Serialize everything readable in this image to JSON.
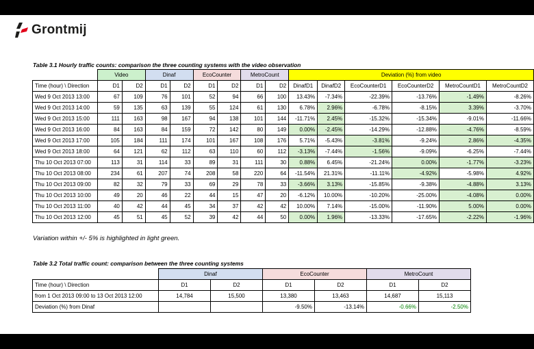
{
  "brand": {
    "name": "Grontmij"
  },
  "table1": {
    "caption": "Table 3.1 Hourly traffic counts: comparison the three counting systems with the video observation",
    "groups": [
      "Video",
      "Dinaf",
      "EcoCounter",
      "MetroCount",
      "Deviation (%) from video"
    ],
    "columns": [
      "Time (hour) \\ Direction",
      "D1",
      "D2",
      "D1",
      "D2",
      "D1",
      "D2",
      "D1",
      "D2",
      "DinafD1",
      "DinafD2",
      "EcoCounterD1",
      "EcoCounterD2",
      "MetroCountD1",
      "MetroCountD2"
    ],
    "rows": [
      [
        "Wed 9 Oct 2013 13:00",
        "67",
        "109",
        "76",
        "101",
        "52",
        "94",
        "66",
        "100",
        "13.43%",
        "-7.34%",
        "-22.39%",
        "-13.76%",
        "-1.49%",
        "-8.26%"
      ],
      [
        "Wed 9 Oct 2013 14:00",
        "59",
        "135",
        "63",
        "139",
        "55",
        "124",
        "61",
        "130",
        "6.78%",
        "2.96%",
        "-6.78%",
        "-8.15%",
        "3.39%",
        "-3.70%"
      ],
      [
        "Wed 9 Oct 2013 15:00",
        "111",
        "163",
        "98",
        "167",
        "94",
        "138",
        "101",
        "144",
        "-11.71%",
        "2.45%",
        "-15.32%",
        "-15.34%",
        "-9.01%",
        "-11.66%"
      ],
      [
        "Wed 9 Oct 2013 16:00",
        "84",
        "163",
        "84",
        "159",
        "72",
        "142",
        "80",
        "149",
        "0.00%",
        "-2.45%",
        "-14.29%",
        "-12.88%",
        "-4.76%",
        "-8.59%"
      ],
      [
        "Wed 9 Oct 2013 17:00",
        "105",
        "184",
        "111",
        "174",
        "101",
        "167",
        "108",
        "176",
        "5.71%",
        "-5.43%",
        "-3.81%",
        "-9.24%",
        "2.86%",
        "-4.35%"
      ],
      [
        "Wed 9 Oct 2013 18:00",
        "64",
        "121",
        "62",
        "112",
        "63",
        "110",
        "60",
        "112",
        "-3.13%",
        "-7.44%",
        "-1.56%",
        "-9.09%",
        "-6.25%",
        "-7.44%"
      ],
      [
        "Thu 10 Oct 2013 07:00",
        "113",
        "31",
        "114",
        "33",
        "89",
        "31",
        "111",
        "30",
        "0.88%",
        "6.45%",
        "-21.24%",
        "0.00%",
        "-1.77%",
        "-3.23%"
      ],
      [
        "Thu 10 Oct 2013 08:00",
        "234",
        "61",
        "207",
        "74",
        "208",
        "58",
        "220",
        "64",
        "-11.54%",
        "21.31%",
        "-11.11%",
        "-4.92%",
        "-5.98%",
        "4.92%"
      ],
      [
        "Thu 10 Oct 2013 09:00",
        "82",
        "32",
        "79",
        "33",
        "69",
        "29",
        "78",
        "33",
        "-3.66%",
        "3.13%",
        "-15.85%",
        "-9.38%",
        "-4.88%",
        "3.13%"
      ],
      [
        "Thu 10 Oct 2013 10:00",
        "49",
        "20",
        "46",
        "22",
        "44",
        "15",
        "47",
        "20",
        "-6.12%",
        "10.00%",
        "-10.20%",
        "-25.00%",
        "-4.08%",
        "0.00%"
      ],
      [
        "Thu 10 Oct 2013 11:00",
        "40",
        "42",
        "44",
        "45",
        "34",
        "37",
        "42",
        "42",
        "10.00%",
        "7.14%",
        "-15.00%",
        "-11.90%",
        "5.00%",
        "0.00%"
      ],
      [
        "Thu 10 Oct 2013 12:00",
        "45",
        "51",
        "45",
        "52",
        "39",
        "42",
        "44",
        "50",
        "0.00%",
        "1.96%",
        "-13.33%",
        "-17.65%",
        "-2.22%",
        "-1.96%"
      ]
    ],
    "highlight": [
      [
        false,
        false,
        false,
        false,
        true,
        false
      ],
      [
        false,
        true,
        false,
        false,
        true,
        false
      ],
      [
        false,
        true,
        false,
        false,
        false,
        false
      ],
      [
        true,
        true,
        false,
        false,
        true,
        false
      ],
      [
        false,
        false,
        true,
        false,
        true,
        true
      ],
      [
        true,
        false,
        true,
        false,
        false,
        false
      ],
      [
        true,
        false,
        false,
        true,
        true,
        true
      ],
      [
        false,
        false,
        false,
        true,
        false,
        true
      ],
      [
        true,
        true,
        false,
        false,
        true,
        true
      ],
      [
        false,
        false,
        false,
        false,
        true,
        true
      ],
      [
        false,
        false,
        false,
        false,
        true,
        true
      ],
      [
        true,
        true,
        false,
        false,
        true,
        true
      ]
    ],
    "note": "Variation within +/- 5% is highlighted in light green."
  },
  "table2": {
    "caption": "Table 3.2 Total traffic count: comparison between the three counting systems",
    "groups": [
      "Dinaf",
      "EcoCounter",
      "MetroCount"
    ],
    "header": [
      "Time (hour) \\ Direction",
      "D1",
      "D2",
      "D1",
      "D2",
      "D1",
      "D2"
    ],
    "total_row": [
      "from 1 Oct 2013 09:00 to 13 Oct 2013 12:00",
      "14,784",
      "15,500",
      "13,380",
      "13,463",
      "14,687",
      "15,113"
    ],
    "deviation_row": [
      "Deviation (%) from Dinaf",
      "",
      "",
      "-9.50%",
      "-13.14%",
      "-0.66%",
      "-2.50%"
    ],
    "deviation_green": [
      false,
      false,
      false,
      false,
      false,
      true,
      true
    ]
  },
  "colors": {
    "video": "#ccf0cc",
    "dinaf": "#d2def0",
    "eco": "#f5dcdc",
    "metro": "#e2dcec",
    "deviation": "#ffff00",
    "highlight": "#d8f0d0",
    "green_text": "#008000",
    "logo_red": "#e2001a"
  }
}
